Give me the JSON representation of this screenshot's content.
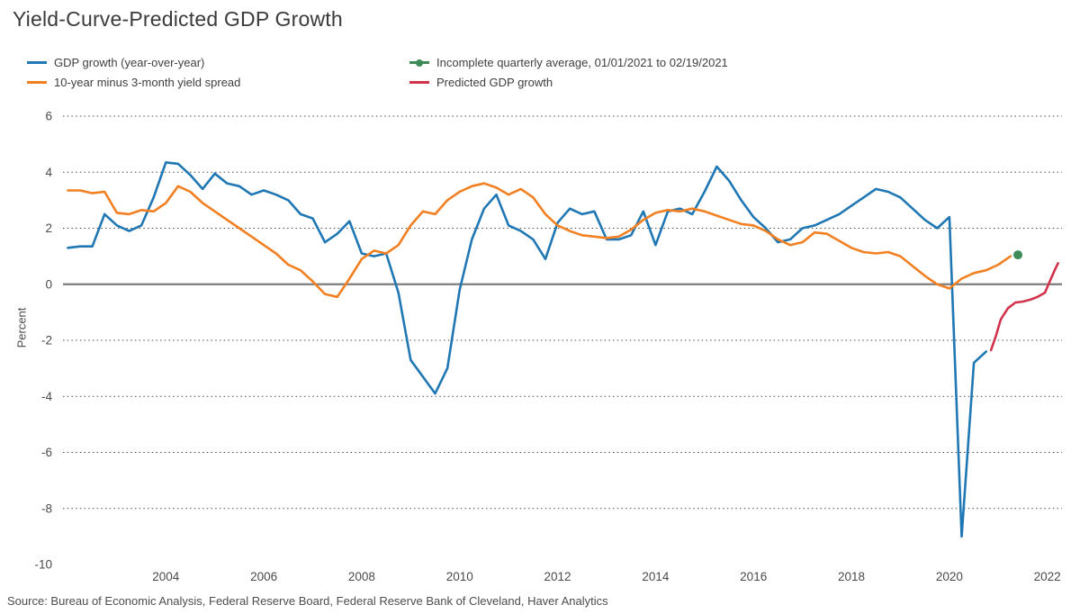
{
  "title": "Yield-Curve-Predicted GDP Growth",
  "source": "Source: Bureau of Economic Analysis, Federal Reserve Board, Federal Reserve Bank of Cleveland, Haver Analytics",
  "legend": {
    "items": [
      {
        "label": "GDP growth (year-over-year)",
        "color": "#1f77b4",
        "marker": "line"
      },
      {
        "label": "10-year minus 3-month yield spread",
        "color": "#f28022",
        "marker": "line"
      },
      {
        "label": "Incomplete quarterly average, 01/01/2021 to 02/19/2021",
        "color": "#3d8b57",
        "marker": "point"
      },
      {
        "label": "Predicted GDP growth",
        "color": "#d2334c",
        "marker": "line"
      }
    ]
  },
  "chart_data": {
    "type": "line",
    "title": "Yield-Curve-Predicted GDP Growth",
    "xlabel": "",
    "ylabel": "Percent",
    "xlim": [
      2001.9,
      2022.3
    ],
    "ylim": [
      -10,
      6
    ],
    "xticks": [
      2004,
      2006,
      2008,
      2010,
      2012,
      2014,
      2016,
      2018,
      2020,
      2022
    ],
    "yticks": [
      6,
      4,
      2,
      0,
      -2,
      -4,
      -6,
      -8,
      -10
    ],
    "grid": "dotted horizontal lines at each y tick, solid gray line at zero",
    "legend_position": "top",
    "series": [
      {
        "name": "GDP growth (year-over-year)",
        "type": "line",
        "color": "#1f77b4",
        "x_start": 2002.0,
        "x_step": 0.25,
        "values": [
          1.3,
          1.35,
          1.35,
          2.5,
          2.1,
          1.9,
          2.1,
          3.1,
          4.35,
          4.3,
          3.9,
          3.4,
          3.95,
          3.6,
          3.5,
          3.2,
          3.35,
          3.2,
          3.0,
          2.5,
          2.35,
          1.5,
          1.8,
          2.25,
          1.1,
          1.0,
          1.1,
          -0.3,
          -2.7,
          -3.3,
          -3.9,
          -3.0,
          -0.2,
          1.6,
          2.7,
          3.2,
          2.1,
          1.9,
          1.6,
          0.9,
          2.2,
          2.7,
          2.5,
          2.6,
          1.6,
          1.6,
          1.75,
          2.6,
          1.4,
          2.6,
          2.7,
          2.5,
          3.3,
          4.2,
          3.7,
          3.0,
          2.4,
          2.0,
          1.5,
          1.6,
          2.0,
          2.1,
          2.3,
          2.5,
          2.8,
          3.1,
          3.4,
          3.3,
          3.1,
          2.7,
          2.3,
          2.0,
          2.4,
          -9.0,
          -2.8,
          -2.4
        ]
      },
      {
        "name": "10-year minus 3-month yield spread",
        "type": "line",
        "color": "#f28022",
        "x_start": 2002.0,
        "x_step": 0.25,
        "values": [
          3.35,
          3.35,
          3.25,
          3.3,
          2.55,
          2.5,
          2.65,
          2.6,
          2.9,
          3.5,
          3.3,
          2.9,
          2.6,
          2.3,
          2.0,
          1.7,
          1.4,
          1.1,
          0.7,
          0.5,
          0.1,
          -0.35,
          -0.45,
          0.2,
          0.9,
          1.2,
          1.1,
          1.4,
          2.1,
          2.6,
          2.5,
          3.0,
          3.3,
          3.5,
          3.6,
          3.45,
          3.2,
          3.4,
          3.1,
          2.5,
          2.1,
          1.9,
          1.75,
          1.7,
          1.65,
          1.7,
          1.95,
          2.3,
          2.55,
          2.65,
          2.6,
          2.7,
          2.6,
          2.45,
          2.3,
          2.15,
          2.1,
          1.9,
          1.6,
          1.4,
          1.5,
          1.85,
          1.8,
          1.55,
          1.3,
          1.15,
          1.1,
          1.15,
          1.0,
          0.65,
          0.3,
          0.0,
          -0.15,
          0.2,
          0.4,
          0.5,
          0.7,
          1.0
        ]
      },
      {
        "name": "Predicted GDP growth",
        "type": "line",
        "color": "#d2334c",
        "points": [
          [
            2020.85,
            -2.35
          ],
          [
            2020.95,
            -1.85
          ],
          [
            2021.05,
            -1.25
          ],
          [
            2021.2,
            -0.85
          ],
          [
            2021.35,
            -0.65
          ],
          [
            2021.5,
            -0.62
          ],
          [
            2021.65,
            -0.55
          ],
          [
            2021.8,
            -0.45
          ],
          [
            2021.95,
            -0.3
          ],
          [
            2022.05,
            0.1
          ],
          [
            2022.15,
            0.5
          ],
          [
            2022.22,
            0.75
          ]
        ]
      },
      {
        "name": "Incomplete quarterly average, 01/01/2021 to 02/19/2021",
        "type": "scatter",
        "color": "#3d8b57",
        "points": [
          [
            2021.4,
            1.05
          ]
        ]
      }
    ]
  }
}
